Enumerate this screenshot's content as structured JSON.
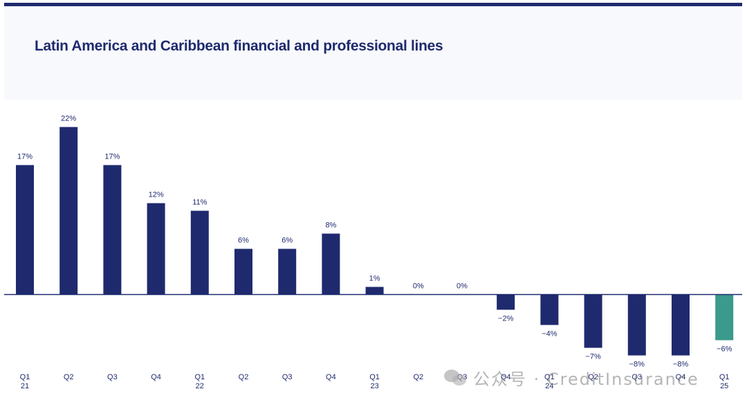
{
  "title": "Latin America and Caribbean financial and professional lines",
  "watermark": "公众号 · CreditInsurance",
  "colors": {
    "primary": "#1f2a6e",
    "highlight": "#3a9a8c",
    "header_bg": "#f8f9fc"
  },
  "chart_data": {
    "type": "bar",
    "categories": [
      [
        "Q1",
        "21"
      ],
      [
        "Q2"
      ],
      [
        "Q3"
      ],
      [
        "Q4"
      ],
      [
        "Q1",
        "22"
      ],
      [
        "Q2"
      ],
      [
        "Q3"
      ],
      [
        "Q4"
      ],
      [
        "Q1",
        "23"
      ],
      [
        "Q2"
      ],
      [
        "Q3"
      ],
      [
        "Q4"
      ],
      [
        "Q1",
        "24"
      ],
      [
        "Q2"
      ],
      [
        "Q3"
      ],
      [
        "Q4"
      ],
      [
        "Q1",
        "25"
      ]
    ],
    "values": [
      17,
      22,
      17,
      12,
      11,
      6,
      6,
      8,
      1,
      0,
      0,
      -2,
      -4,
      -7,
      -8,
      -8,
      -6
    ],
    "data_labels": [
      "17%",
      "22%",
      "17%",
      "12%",
      "11%",
      "6%",
      "6%",
      "8%",
      "1%",
      "0%",
      "0%",
      "−2%",
      "−4%",
      "−7%",
      "−8%",
      "−8%",
      "−6%"
    ],
    "highlight_index": 16,
    "ylim": [
      -10,
      22
    ],
    "grid": false,
    "legend": "none"
  }
}
